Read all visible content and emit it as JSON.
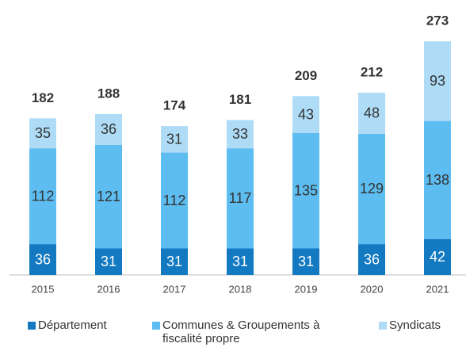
{
  "chart_data": {
    "type": "stacked-bar",
    "categories": [
      "2015",
      "2016",
      "2017",
      "2018",
      "2019",
      "2020",
      "2021"
    ],
    "series": [
      {
        "name": "Département",
        "color": "#1379c0",
        "values": [
          36,
          31,
          31,
          31,
          31,
          36,
          42
        ]
      },
      {
        "name": "Communes & Groupements à fiscalité propre",
        "color": "#5dbcf0",
        "values": [
          112,
          121,
          112,
          117,
          135,
          129,
          138
        ]
      },
      {
        "name": "Syndicats",
        "color": "#aedcf6",
        "values": [
          35,
          36,
          31,
          33,
          43,
          48,
          93
        ]
      }
    ],
    "totals": [
      182,
      188,
      174,
      181,
      209,
      212,
      273
    ],
    "legend": "bottom"
  }
}
